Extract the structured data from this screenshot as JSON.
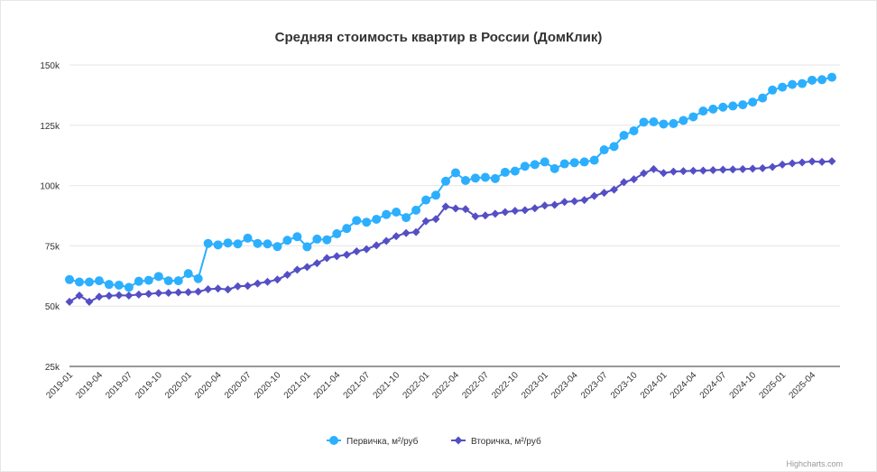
{
  "chart_data": {
    "type": "line",
    "title": "Средняя стоимость квартир в России (ДомКлик)",
    "xlabel": "",
    "ylabel": "",
    "ylim": [
      25000,
      150000
    ],
    "yticks": [
      25000,
      50000,
      75000,
      100000,
      125000,
      150000
    ],
    "ytick_labels": [
      "25k",
      "50k",
      "75k",
      "100k",
      "125k",
      "150k"
    ],
    "x_tick_labels": [
      "2019-01",
      "2019-04",
      "2019-07",
      "2019-10",
      "2020-01",
      "2020-04",
      "2020-07",
      "2020-10",
      "2021-01",
      "2021-04",
      "2021-07",
      "2021-10",
      "2022-01",
      "2022-04",
      "2022-07",
      "2022-10",
      "2023-01",
      "2023-04",
      "2023-07",
      "2023-10",
      "2024-01",
      "2024-04",
      "2024-07",
      "2024-10",
      "2025-01",
      "2025-04"
    ],
    "grid": true,
    "legend_position": "bottom",
    "categories": [
      "2019-01",
      "2019-02",
      "2019-03",
      "2019-04",
      "2019-05",
      "2019-06",
      "2019-07",
      "2019-08",
      "2019-09",
      "2019-10",
      "2019-11",
      "2019-12",
      "2020-01",
      "2020-02",
      "2020-03",
      "2020-04",
      "2020-05",
      "2020-06",
      "2020-07",
      "2020-08",
      "2020-09",
      "2020-10",
      "2020-11",
      "2020-12",
      "2021-01",
      "2021-02",
      "2021-03",
      "2021-04",
      "2021-05",
      "2021-06",
      "2021-07",
      "2021-08",
      "2021-09",
      "2021-10",
      "2021-11",
      "2021-12",
      "2022-01",
      "2022-02",
      "2022-03",
      "2022-04",
      "2022-05",
      "2022-06",
      "2022-07",
      "2022-08",
      "2022-09",
      "2022-10",
      "2022-11",
      "2022-12",
      "2023-01",
      "2023-02",
      "2023-03",
      "2023-04",
      "2023-05",
      "2023-06",
      "2023-07",
      "2023-08",
      "2023-09",
      "2023-10",
      "2023-11",
      "2023-12",
      "2024-01",
      "2024-02",
      "2024-03",
      "2024-04",
      "2024-05",
      "2024-06",
      "2024-07",
      "2024-08",
      "2024-09",
      "2024-10",
      "2024-11",
      "2024-12",
      "2025-01",
      "2025-02",
      "2025-03",
      "2025-04",
      "2025-05",
      "2025-06"
    ],
    "series": [
      {
        "name": "Первичка, м²/руб",
        "color": "#2caffe",
        "marker": "circle",
        "values": [
          61000,
          60000,
          60000,
          60500,
          59000,
          58700,
          57800,
          60300,
          60700,
          62300,
          60500,
          60500,
          63500,
          61400,
          76000,
          75400,
          76200,
          75800,
          78200,
          76000,
          75800,
          74700,
          77300,
          78800,
          74600,
          77800,
          77500,
          80000,
          82200,
          85500,
          84800,
          86000,
          88000,
          89000,
          86700,
          89800,
          94000,
          96000,
          101800,
          105300,
          102100,
          103100,
          103400,
          102900,
          105500,
          106000,
          108000,
          108700,
          109800,
          107000,
          109000,
          109500,
          109800,
          110500,
          114800,
          116200,
          120800,
          122700,
          126300,
          126400,
          125500,
          125700,
          127000,
          128500,
          130900,
          131700,
          132500,
          133000,
          133500,
          134600,
          136300,
          139600,
          140800,
          141900,
          142300,
          143700,
          143900,
          144900
        ]
      },
      {
        "name": "Вторичка, м²/руб",
        "color": "#544fc5",
        "marker": "diamond",
        "values": [
          51800,
          54400,
          51800,
          53900,
          54300,
          54500,
          54400,
          54800,
          55100,
          55400,
          55500,
          55700,
          55800,
          56000,
          57000,
          57300,
          56900,
          58200,
          58400,
          59400,
          60100,
          61000,
          63000,
          65100,
          66200,
          67800,
          69900,
          70700,
          71300,
          72700,
          73600,
          75200,
          77000,
          79000,
          80300,
          80700,
          85200,
          86100,
          91300,
          90500,
          90200,
          87200,
          87600,
          88300,
          89000,
          89500,
          89800,
          90600,
          91700,
          92000,
          93200,
          93500,
          94000,
          95700,
          97000,
          98300,
          101400,
          102600,
          105100,
          106800,
          105200,
          105800,
          106000,
          106100,
          106200,
          106400,
          106600,
          106700,
          106800,
          107000,
          107200,
          107700,
          108700,
          109200,
          109600,
          110000,
          109800,
          110100
        ]
      }
    ]
  },
  "credits": "Highcharts.com"
}
